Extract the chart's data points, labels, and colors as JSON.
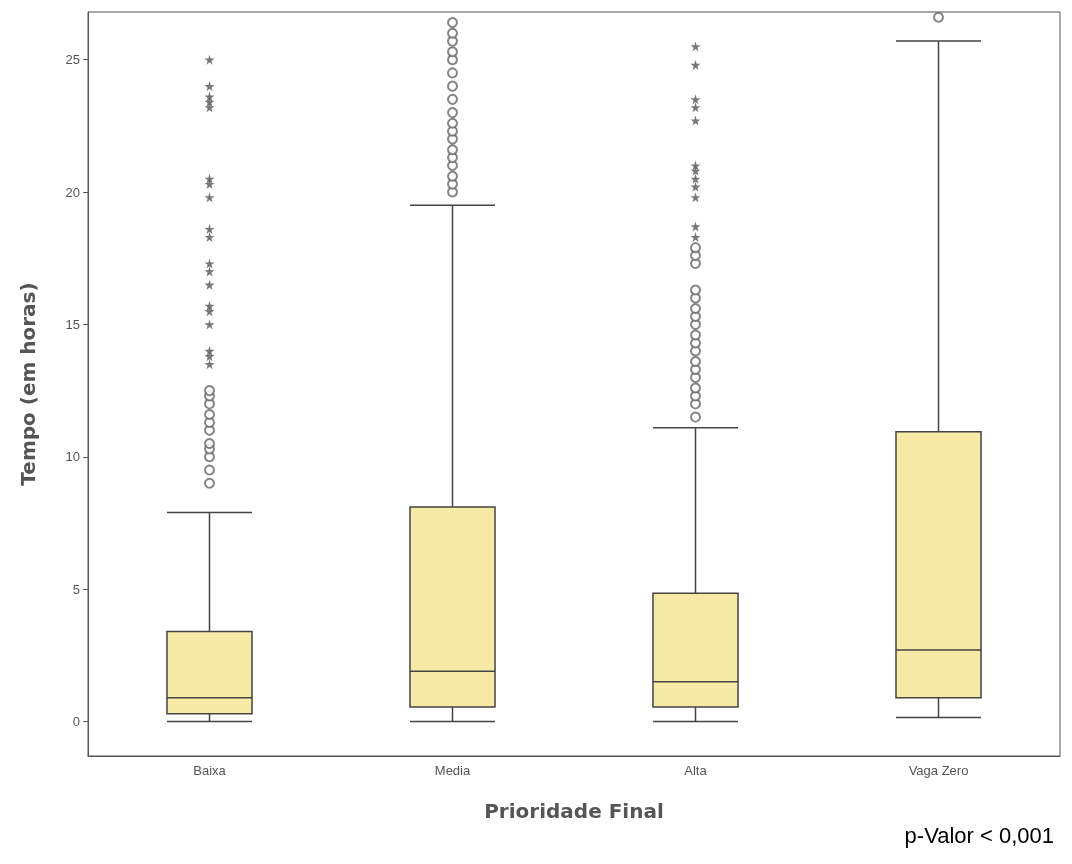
{
  "chart_data": {
    "type": "box",
    "xlabel": "Prioridade Final",
    "ylabel": "Tempo (em horas)",
    "categories": [
      "Baixa",
      "Media",
      "Alta",
      "Vaga Zero"
    ],
    "ylim": [
      -1.3,
      26.8
    ],
    "yticks": [
      0,
      5,
      10,
      15,
      20,
      25
    ],
    "grid": false,
    "annotations": [
      "p-Valor < 0,001"
    ],
    "series": [
      {
        "color": "#f7eaa6",
        "boxes": [
          {
            "low": 0,
            "q1": 0.3,
            "median": 0.9,
            "q3": 3.4,
            "high": 7.9,
            "outliers": [
              9,
              9.5,
              10,
              10.3,
              10.5,
              11,
              11.3,
              11.6,
              12,
              12.3,
              12.5
            ]
          },
          {
            "low": 0,
            "q1": 0.55,
            "median": 1.9,
            "q3": 8.1,
            "high": 19.5,
            "outliers": [
              20,
              20.3,
              20.6,
              21,
              21.3,
              21.6,
              22,
              22.3,
              22.6,
              23,
              23.5,
              24,
              24.5,
              25,
              25.3,
              25.7,
              26,
              26.4
            ]
          },
          {
            "low": 0,
            "q1": 0.55,
            "median": 1.5,
            "q3": 4.85,
            "high": 11.1,
            "outliers": [
              11.5,
              12,
              12.3,
              12.6,
              13,
              13.3,
              13.6,
              14,
              14.3,
              14.6,
              15,
              15.3,
              15.6,
              16,
              16.3,
              17.3,
              17.6,
              17.9
            ]
          },
          {
            "low": 0.15,
            "q1": 0.9,
            "median": 2.7,
            "q3": 10.95,
            "high": 25.7,
            "outliers": [
              26.6
            ]
          }
        ]
      },
      {
        "type": "scatter",
        "marker": "star",
        "color": "#555555",
        "x": [
          "Baixa",
          "Baixa",
          "Baixa",
          "Baixa",
          "Baixa",
          "Baixa",
          "Baixa",
          "Baixa",
          "Baixa",
          "Baixa",
          "Baixa",
          "Baixa",
          "Baixa",
          "Baixa",
          "Baixa",
          "Baixa",
          "Baixa",
          "Baixa",
          "Baixa",
          "Alta",
          "Alta",
          "Alta",
          "Alta",
          "Alta",
          "Alta",
          "Alta",
          "Alta",
          "Alta",
          "Alta",
          "Alta",
          "Alta"
        ],
        "values": [
          13.5,
          13.8,
          14,
          15,
          15.5,
          15.7,
          16.5,
          17,
          17.3,
          18.3,
          18.6,
          19.8,
          20.3,
          20.5,
          23.2,
          23.4,
          23.6,
          24,
          25,
          18.3,
          18.7,
          19.8,
          20.2,
          20.5,
          20.8,
          21,
          22.7,
          23.2,
          23.5,
          24.8,
          25.5
        ]
      }
    ]
  }
}
